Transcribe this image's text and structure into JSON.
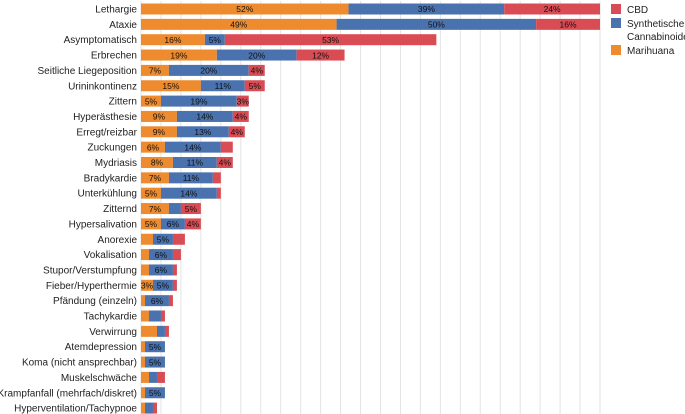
{
  "chart_data": {
    "type": "bar",
    "orientation": "horizontal",
    "stacked": true,
    "title": "",
    "xlabel": "",
    "ylabel": "",
    "xlim": [
      0,
      115
    ],
    "grid": true,
    "legend_position": "right",
    "categories": [
      "Lethargie",
      "Ataxie",
      "Asymptomatisch",
      "Erbrechen",
      "Seitliche Liegeposition",
      "Urininkontinenz",
      "Zittern",
      "Hyperästhesie",
      "Erregt/reizbar",
      "Zuckungen",
      "Mydriasis",
      "Bradykardie",
      "Unterkühlung",
      "Zitternd",
      "Hypersalivation",
      "Anorexie",
      "Vokalisation",
      "Stupor/Verstumpfung",
      "Fieber/Hyperthermie",
      "Pfändung (einzeln)",
      "Tachykardie",
      "Verwirrung",
      "Atemdepression",
      "Koma (nicht ansprechbar)",
      "Muskelschwäche",
      "Krampfanfall (mehrfach/diskret)",
      "Hyperventilation/Tachypnoe"
    ],
    "series": [
      {
        "name": "Marihuana",
        "color": "#ED8B2E",
        "values": [
          52,
          49,
          16,
          19,
          7,
          15,
          5,
          9,
          9,
          6,
          8,
          7,
          5,
          7,
          5,
          3,
          2,
          2,
          3,
          1,
          2,
          4,
          1,
          1,
          2,
          1,
          1
        ],
        "labels": [
          "52%",
          "49%",
          "16%",
          "19%",
          "7%",
          "15%",
          "5%",
          "9%",
          "9%",
          "6%",
          "8%",
          "7%",
          "5%",
          "7%",
          "5%",
          "",
          "",
          "",
          "3%",
          "",
          "",
          "",
          "",
          "",
          "",
          "",
          ""
        ]
      },
      {
        "name": "Synthetische Cannabinoide",
        "color": "#4A72AE",
        "values": [
          39,
          50,
          5,
          20,
          20,
          11,
          19,
          14,
          13,
          14,
          11,
          11,
          14,
          3,
          6,
          5,
          6,
          6,
          5,
          6,
          3,
          2,
          5,
          5,
          2,
          5,
          2
        ],
        "labels": [
          "39%",
          "50%",
          "5%",
          "20%",
          "20%",
          "11%",
          "19%",
          "14%",
          "13%",
          "14%",
          "11%",
          "11%",
          "14%",
          "",
          "6%",
          "5%",
          "6%",
          "6%",
          "5%",
          "6%",
          "",
          "",
          "5%",
          "5%",
          "",
          "5%",
          ""
        ]
      },
      {
        "name": "CBD",
        "color": "#D94C54",
        "values": [
          24,
          16,
          53,
          12,
          4,
          5,
          3,
          4,
          4,
          3,
          4,
          2,
          1,
          5,
          4,
          3,
          2,
          1,
          1,
          1,
          1,
          1,
          0,
          0,
          2,
          0,
          1
        ],
        "labels": [
          "24%",
          "16%",
          "53%",
          "12%",
          "4%",
          "5%",
          "3%",
          "4%",
          "4%",
          "",
          "4%",
          "",
          "",
          "5%",
          "4%",
          "",
          "",
          "",
          "",
          "",
          "",
          "",
          "",
          "",
          "",
          "",
          ""
        ]
      }
    ],
    "legend": [
      "CBD",
      "Synthetische Cannabinoide",
      "Marihuana"
    ]
  }
}
